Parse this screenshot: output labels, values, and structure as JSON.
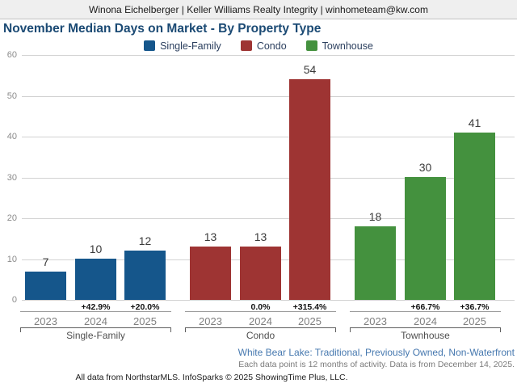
{
  "header": {
    "text": "Winona Eichelberger | Keller Williams Realty Integrity | winhometeam@kw.com"
  },
  "footer": {
    "location_filter": "White Bear Lake: Traditional, Previously Owned, Non-Waterfront",
    "data_note": "Each data point is 12 months of activity. Data is from December 14, 2025.",
    "attribution": "All data from NorthstarMLS. InfoSparks © 2025 ShowingTime Plus, LLC."
  },
  "colors": {
    "single_family": "#15568b",
    "condo": "#9e3433",
    "townhouse": "#44913e",
    "title_text": "#1b4a74",
    "footer_link_text": "#4678af"
  },
  "chart_data": {
    "type": "bar",
    "title": "November Median Days on Market - By Property Type",
    "ylabel": "",
    "xlabel": "",
    "ylim": [
      0,
      60
    ],
    "yticks": [
      0,
      10,
      20,
      30,
      40,
      50,
      60
    ],
    "grid": true,
    "legend_position": "top",
    "legend": [
      "Single-Family",
      "Condo",
      "Townhouse"
    ],
    "categories": [
      "2023",
      "2024",
      "2025"
    ],
    "groups": [
      {
        "name": "Single-Family",
        "color": "#15568b",
        "years": [
          "2023",
          "2024",
          "2025"
        ],
        "values": [
          7,
          10,
          12
        ],
        "pct_change": [
          "",
          "+42.9%",
          "+20.0%"
        ]
      },
      {
        "name": "Condo",
        "color": "#9e3433",
        "years": [
          "2023",
          "2024",
          "2025"
        ],
        "values": [
          13,
          13,
          54
        ],
        "pct_change": [
          "",
          "0.0%",
          "+315.4%"
        ]
      },
      {
        "name": "Townhouse",
        "color": "#44913e",
        "years": [
          "2023",
          "2024",
          "2025"
        ],
        "values": [
          18,
          30,
          41
        ],
        "pct_change": [
          "",
          "+66.7%",
          "+36.7%"
        ]
      }
    ]
  }
}
